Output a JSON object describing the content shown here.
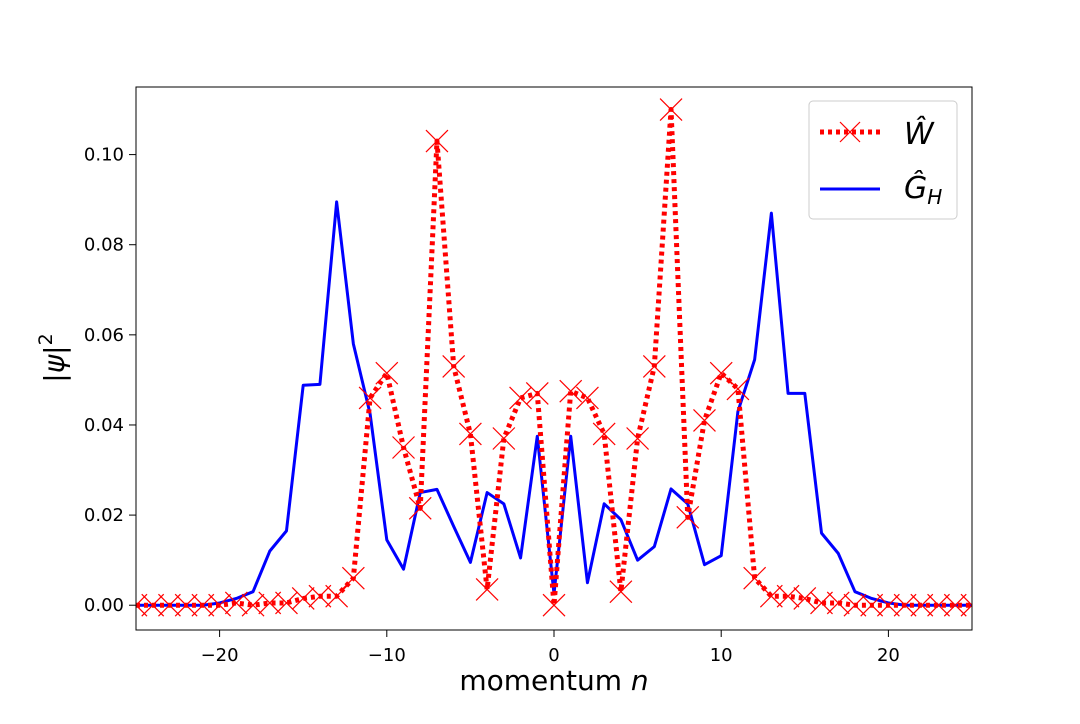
{
  "chart_data": {
    "type": "line",
    "xlabel": "momentum n",
    "ylabel": "|ψ|²",
    "xlim": [
      -25,
      25
    ],
    "ylim": [
      -0.0055,
      0.115
    ],
    "x_ticks": [
      -20,
      -10,
      0,
      10,
      20
    ],
    "x_tick_labels": [
      "−20",
      "−10",
      "0",
      "10",
      "20"
    ],
    "y_ticks": [
      0.0,
      0.02,
      0.04,
      0.06,
      0.08,
      0.1
    ],
    "y_tick_labels": [
      "0.00",
      "0.02",
      "0.04",
      "0.06",
      "0.08",
      "0.10"
    ],
    "grid": false,
    "legend_position": "top-right",
    "series": [
      {
        "name": "Ŵ",
        "color": "#ff0000",
        "line_style": "dotted",
        "marker": "x",
        "x": [
          -25,
          -24,
          -23,
          -22,
          -21,
          -20,
          -19,
          -18,
          -17,
          -16,
          -15,
          -14,
          -13,
          -12,
          -11,
          -10,
          -9,
          -8,
          -7,
          -6,
          -5,
          -4,
          -3,
          -2,
          -1,
          0,
          1,
          2,
          3,
          4,
          5,
          6,
          7,
          8,
          9,
          10,
          11,
          12,
          13,
          14,
          15,
          16,
          17,
          18,
          19,
          20,
          21,
          22,
          23,
          24,
          25
        ],
        "values": [
          0.0,
          0.0,
          0.0,
          0.0,
          0.0,
          0.0,
          0.0005,
          0.0,
          0.0005,
          0.0005,
          0.0015,
          0.002,
          0.002,
          0.006,
          0.046,
          0.0515,
          0.035,
          0.0215,
          0.103,
          0.053,
          0.038,
          0.0035,
          0.037,
          0.046,
          0.047,
          0.0,
          0.0475,
          0.046,
          0.038,
          0.003,
          0.037,
          0.053,
          0.11,
          0.0195,
          0.041,
          0.0515,
          0.048,
          0.006,
          0.002,
          0.002,
          0.0015,
          0.0005,
          0.0005,
          0.0,
          0.0,
          0.0,
          0.0,
          0.0,
          0.0,
          0.0,
          0.0
        ]
      },
      {
        "name": "Ĝ_H",
        "color": "#0000ff",
        "line_style": "solid",
        "marker": "none",
        "x": [
          -25,
          -24,
          -23,
          -22,
          -21,
          -20,
          -19,
          -18,
          -17,
          -16,
          -15,
          -14,
          -13,
          -12,
          -11,
          -10,
          -9,
          -8,
          -7,
          -6,
          -5,
          -4,
          -3,
          -2,
          -1,
          0,
          1,
          2,
          3,
          4,
          5,
          6,
          7,
          8,
          9,
          10,
          11,
          12,
          13,
          14,
          15,
          16,
          17,
          18,
          19,
          20,
          21,
          22,
          23,
          24,
          25
        ],
        "values": [
          0.0,
          0.0,
          0.0,
          0.0,
          0.0,
          0.0005,
          0.0015,
          0.003,
          0.012,
          0.0165,
          0.0488,
          0.049,
          0.0895,
          0.058,
          0.0425,
          0.0145,
          0.008,
          0.025,
          0.0257,
          0.0175,
          0.0095,
          0.025,
          0.0225,
          0.0105,
          0.0375,
          0.0025,
          0.0375,
          0.005,
          0.0225,
          0.019,
          0.01,
          0.013,
          0.0258,
          0.0225,
          0.009,
          0.011,
          0.043,
          0.0545,
          0.087,
          0.047,
          0.047,
          0.016,
          0.0115,
          0.003,
          0.0015,
          0.0005,
          0.0,
          0.0,
          0.0,
          0.0,
          0.0
        ]
      }
    ],
    "legend": [
      {
        "label": "Ŵ",
        "color": "#ff0000",
        "style": "dotted-x"
      },
      {
        "label": "Ĝ",
        "subscript": "H",
        "color": "#0000ff",
        "style": "solid"
      }
    ]
  }
}
